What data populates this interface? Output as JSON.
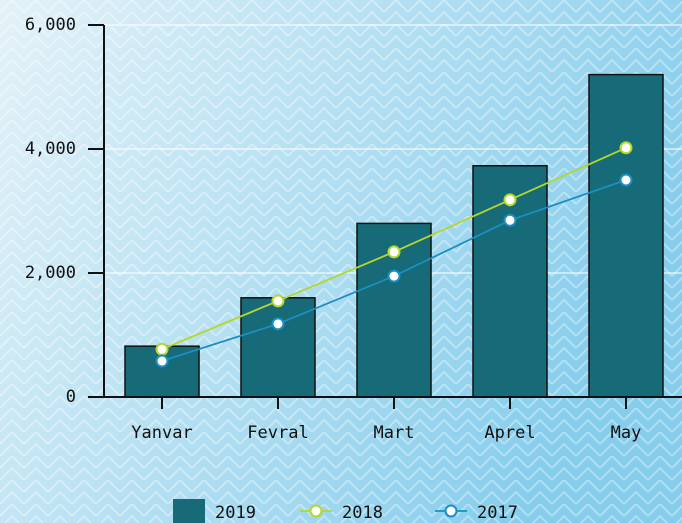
{
  "chart_data": {
    "type": "bar",
    "categories": [
      "Yanvar",
      "Fevral",
      "Mart",
      "Aprel",
      "May"
    ],
    "series": [
      {
        "name": "2019",
        "type": "bar",
        "color": "#176b78",
        "values": [
          820,
          1600,
          2800,
          3730,
          5200
        ]
      },
      {
        "name": "2018",
        "type": "line",
        "color": "#b5d62a",
        "values": [
          770,
          1550,
          2340,
          3180,
          4020
        ]
      },
      {
        "name": "2017",
        "type": "line",
        "color": "#1a8fc4",
        "values": [
          580,
          1180,
          1950,
          2850,
          3500
        ]
      }
    ],
    "ylim": [
      0,
      6000
    ],
    "yticks": [
      0,
      {
        "value": 2000,
        "label": "2,000"
      },
      {
        "value": 4000,
        "label": "4,000"
      },
      {
        "value": 6000,
        "label": "6,000"
      }
    ],
    "grid": true,
    "legend": "bottom"
  }
}
